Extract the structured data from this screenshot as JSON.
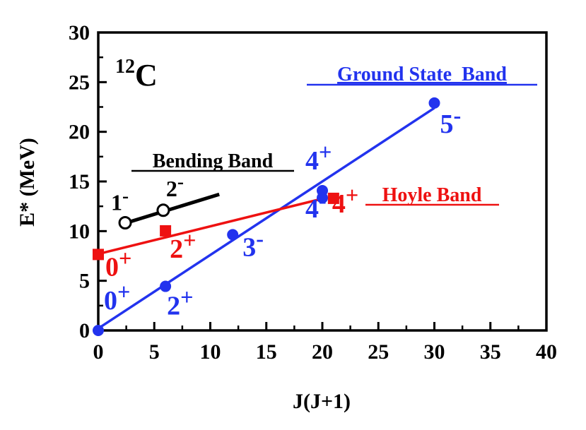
{
  "chart_data": {
    "type": "scatter",
    "title": "",
    "xlabel": "J(J+1)",
    "ylabel": "E* (MeV)",
    "xlim": [
      0,
      40
    ],
    "ylim": [
      0,
      30
    ],
    "x_ticks": [
      "0",
      "5",
      "10",
      "15",
      "20",
      "25",
      "30",
      "35",
      "40"
    ],
    "y_ticks": [
      "0",
      "5",
      "10",
      "15",
      "20",
      "25",
      "30"
    ],
    "nucleus": {
      "mass": "12",
      "symbol": "C"
    },
    "colors": {
      "ground": "#2233ee",
      "hoyle": "#ee1111",
      "bending": "#000000"
    },
    "series": [
      {
        "name": "Ground State  Band",
        "color": "#2233ee",
        "marker": "circle",
        "points": [
          {
            "x": 0,
            "y": 0,
            "label": "0+"
          },
          {
            "x": 6,
            "y": 4.44,
            "label": "2+"
          },
          {
            "x": 12,
            "y": 9.64,
            "label": "3-"
          },
          {
            "x": 20,
            "y": 14.08,
            "label": "4+"
          },
          {
            "x": 20,
            "y": 13.35,
            "label": "4-"
          },
          {
            "x": 30,
            "y": 22.9,
            "label": "5-"
          }
        ],
        "fit": {
          "x": [
            0,
            30
          ],
          "y": [
            0.2,
            22.4
          ]
        }
      },
      {
        "name": "Hoyle Band",
        "color": "#ee1111",
        "marker": "square",
        "points": [
          {
            "x": 0,
            "y": 7.65,
            "label": "0+"
          },
          {
            "x": 6,
            "y": 10.03,
            "label": "2+"
          },
          {
            "x": 21,
            "y": 13.3,
            "label": "4+"
          }
        ],
        "fit": {
          "x": [
            0,
            20.5
          ],
          "y": [
            7.7,
            13.4
          ]
        }
      },
      {
        "name": "Bending Band",
        "color": "#000000",
        "marker": "open-circle",
        "points": [
          {
            "x": 2.4,
            "y": 10.84,
            "label": "1-"
          },
          {
            "x": 5.8,
            "y": 12.1,
            "label": "2-"
          }
        ],
        "fit": {
          "x": [
            2.4,
            10.8
          ],
          "y": [
            10.8,
            13.7
          ]
        }
      }
    ]
  }
}
